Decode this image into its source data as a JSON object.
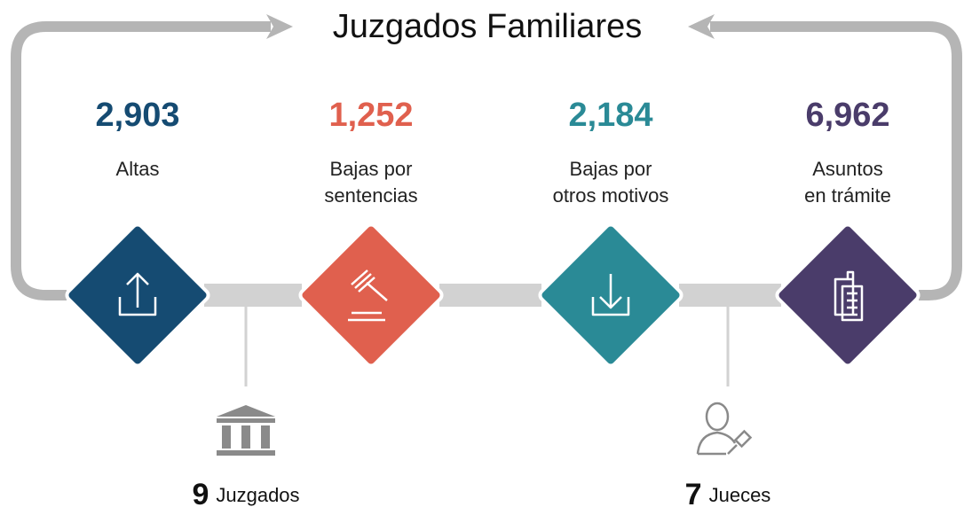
{
  "title": "Juzgados Familiares",
  "items": [
    {
      "value": "2,903",
      "label": [
        "Altas"
      ]
    },
    {
      "value": "1,252",
      "label": [
        "Bajas por",
        "sentencias"
      ]
    },
    {
      "value": "2,184",
      "label": [
        "Bajas por",
        "otros motivos"
      ]
    },
    {
      "value": "6,962",
      "label": [
        "Asuntos",
        "en trámite"
      ]
    }
  ],
  "footer": [
    {
      "number": "9",
      "label": "Juzgados"
    },
    {
      "number": "7",
      "label": "Jueces"
    }
  ]
}
